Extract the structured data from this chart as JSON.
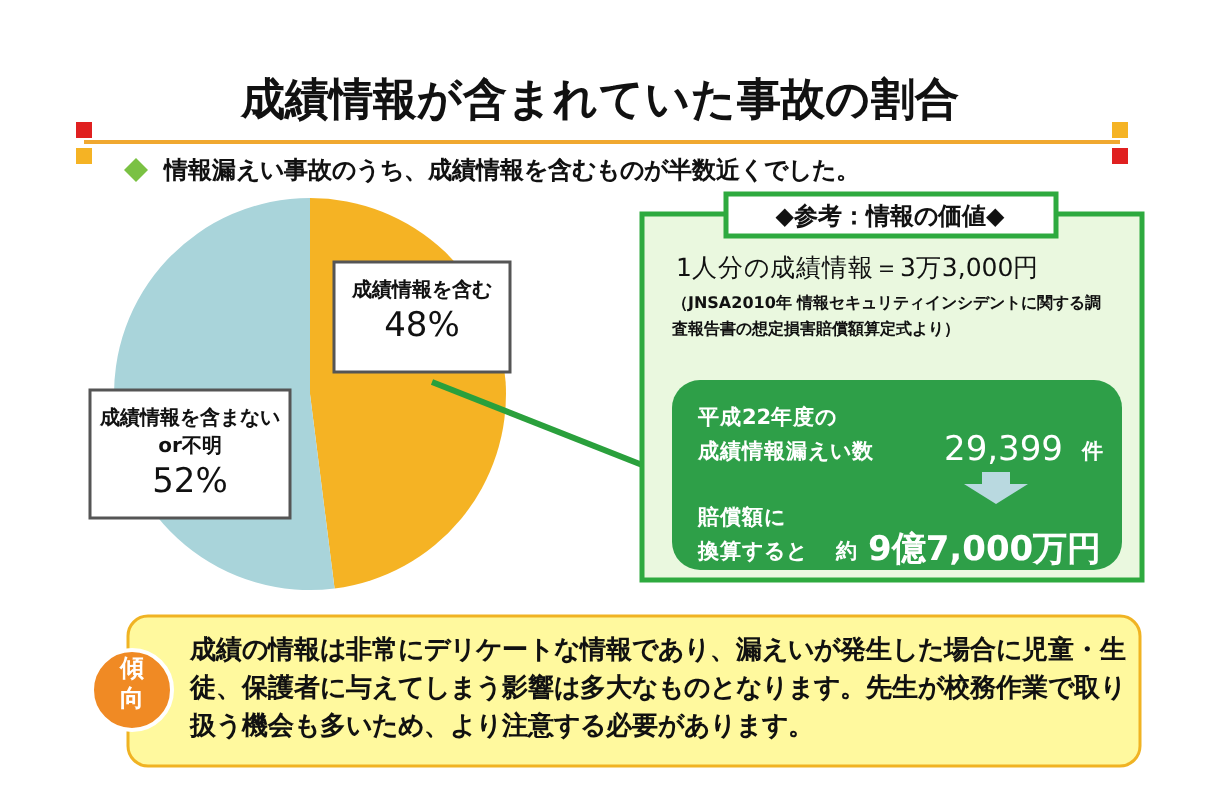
{
  "chart_data": [
    {
      "type": "pie",
      "title": "成績情報が含まれていた事故の割合",
      "subtitle": "情報漏えい事故のうち、成績情報を含むものが半数近くでした。",
      "categories": [
        "成績情報を含む",
        "成績情報を含まないor不明"
      ],
      "values": [
        48,
        52
      ],
      "colors": [
        "#f5b324",
        "#a9d4da"
      ],
      "value_labels": [
        "48%",
        "52%"
      ],
      "annotations": [
        "傾向",
        "成績の情報は非常にデリケートな情報であり、漏えいが発生した場合に児童・生徒、保護者に与えてしまう影響は多大なものとなります。先生が校務作業で取り扱う機会も多いため、より注意する必要があります。"
      ]
    },
    {
      "type": "other",
      "title": "◆参考：情報の価値◆",
      "annotations": [
        "1人分の成績情報＝3万3,000円",
        "（JNSA2010年 情報セキュリティインシデントに関する調査報告書の想定損害賠償額算定式より）",
        "平成22年度の",
        "成績情報漏えい数",
        "29,399",
        "件",
        "賠償額に",
        "換算すると",
        "約",
        "9億7,000万円"
      ]
    }
  ]
}
